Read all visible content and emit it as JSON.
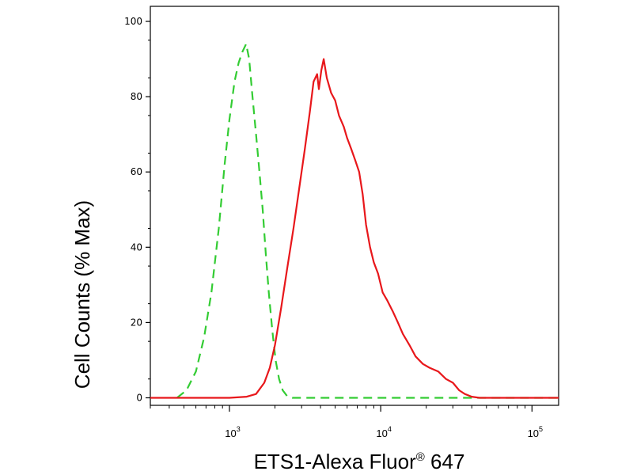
{
  "chart_data": {
    "type": "line",
    "title": "",
    "xlabel": {
      "prefix": "ETS1-Alexa Fluor",
      "superscript": "®",
      "suffix": " 647"
    },
    "ylabel": "Cell Counts (% Max)",
    "x_scale": "log",
    "xlim": [
      300,
      150000
    ],
    "ylim": [
      -2,
      104
    ],
    "yticks": [
      {
        "value": 0,
        "label": "0"
      },
      {
        "value": 20,
        "label": "20"
      },
      {
        "value": 40,
        "label": "40"
      },
      {
        "value": 60,
        "label": "60"
      },
      {
        "value": 80,
        "label": "80"
      },
      {
        "value": 100,
        "label": "100"
      }
    ],
    "xticks": [
      {
        "value": 1000,
        "base": "10",
        "exp": "3"
      },
      {
        "value": 10000,
        "base": "10",
        "exp": "4"
      },
      {
        "value": 100000,
        "base": "10",
        "exp": "5"
      }
    ],
    "grid": false,
    "series": [
      {
        "style": "dashed",
        "color": "#33cc33",
        "points": [
          [
            450,
            0
          ],
          [
            520,
            2
          ],
          [
            600,
            7
          ],
          [
            680,
            16
          ],
          [
            760,
            28
          ],
          [
            850,
            45
          ],
          [
            930,
            62
          ],
          [
            1000,
            74
          ],
          [
            1080,
            84
          ],
          [
            1150,
            89
          ],
          [
            1220,
            92
          ],
          [
            1290,
            94
          ],
          [
            1350,
            90
          ],
          [
            1420,
            80
          ],
          [
            1500,
            70
          ],
          [
            1580,
            60
          ],
          [
            1660,
            50
          ],
          [
            1740,
            38
          ],
          [
            1820,
            28
          ],
          [
            1920,
            18
          ],
          [
            2020,
            10
          ],
          [
            2130,
            5
          ],
          [
            2250,
            2
          ],
          [
            2400,
            0.5
          ],
          [
            2600,
            0
          ],
          [
            4000,
            0
          ],
          [
            10000,
            0
          ],
          [
            40000,
            0
          ],
          [
            150000,
            0
          ]
        ]
      },
      {
        "style": "solid",
        "color": "#e8171b",
        "points": [
          [
            300,
            0
          ],
          [
            1000,
            0
          ],
          [
            1300,
            0.3
          ],
          [
            1500,
            1
          ],
          [
            1700,
            4
          ],
          [
            1850,
            8
          ],
          [
            2000,
            14
          ],
          [
            2200,
            24
          ],
          [
            2400,
            34
          ],
          [
            2650,
            45
          ],
          [
            2900,
            56
          ],
          [
            3150,
            66
          ],
          [
            3400,
            76
          ],
          [
            3600,
            84
          ],
          [
            3800,
            86
          ],
          [
            3900,
            82
          ],
          [
            4050,
            87
          ],
          [
            4200,
            90
          ],
          [
            4400,
            85
          ],
          [
            4700,
            81
          ],
          [
            5000,
            79
          ],
          [
            5300,
            75
          ],
          [
            5700,
            72
          ],
          [
            6000,
            69
          ],
          [
            6400,
            66
          ],
          [
            6800,
            63
          ],
          [
            7200,
            60
          ],
          [
            7600,
            54
          ],
          [
            8000,
            46
          ],
          [
            8500,
            40
          ],
          [
            9000,
            36
          ],
          [
            9600,
            33
          ],
          [
            10300,
            28
          ],
          [
            11000,
            26
          ],
          [
            12000,
            23
          ],
          [
            13000,
            20
          ],
          [
            14000,
            17
          ],
          [
            15500,
            14
          ],
          [
            17000,
            11
          ],
          [
            19000,
            9
          ],
          [
            21000,
            8
          ],
          [
            24000,
            7
          ],
          [
            27000,
            5
          ],
          [
            30000,
            4
          ],
          [
            33000,
            2
          ],
          [
            36000,
            1
          ],
          [
            40000,
            0.3
          ],
          [
            45000,
            0
          ],
          [
            150000,
            0
          ]
        ]
      }
    ]
  }
}
